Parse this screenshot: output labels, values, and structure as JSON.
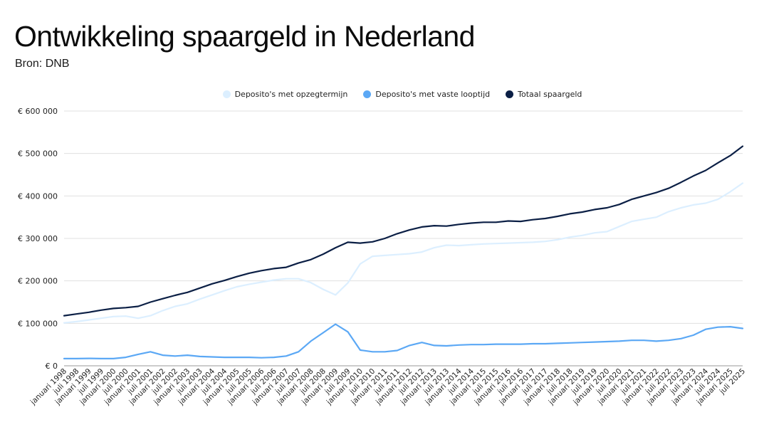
{
  "header": {
    "title": "Ontwikkeling spaargeld in Nederland",
    "source": "Bron: DNB"
  },
  "chart_data": {
    "type": "line",
    "title": "Ontwikkeling spaargeld in Nederland",
    "subtitle": "Bron: DNB",
    "xlabel": "",
    "ylabel": "",
    "ylim": [
      0,
      600000
    ],
    "yticks": [
      0,
      100000,
      200000,
      300000,
      400000,
      500000,
      600000
    ],
    "ytick_labels": [
      "€ 0",
      "€ 100 000",
      "€ 200 000",
      "€ 300 000",
      "€ 400 000",
      "€ 500 000",
      "€ 600 000"
    ],
    "grid": true,
    "legend_position": "top-center",
    "categories": [
      "januari 1998",
      "juli 1998",
      "januari 1999",
      "juli 1999",
      "januari 2000",
      "juli 2000",
      "januari 2001",
      "juli 2001",
      "januari 2002",
      "juli 2002",
      "januari 2003",
      "juli 2003",
      "januari 2004",
      "juli 2004",
      "januari 2005",
      "juli 2005",
      "januari 2006",
      "juli 2006",
      "januari 2007",
      "juli 2007",
      "januari 2008",
      "juli 2008",
      "januari 2009",
      "juli 2009",
      "januari 2010",
      "juli 2010",
      "januari 2011",
      "juli 2011",
      "januari 2012",
      "juli 2012",
      "januari 2013",
      "juli 2013",
      "januari 2014",
      "juli 2014",
      "januari 2015",
      "juli 2015",
      "januari 2016",
      "juli 2016",
      "januari 2017",
      "juli 2017",
      "januari 2018",
      "juli 2018",
      "januari 2019",
      "juli 2019",
      "januari 2020",
      "juli 2020",
      "januari 2021",
      "juli 2021",
      "januari 2022",
      "juli 2022",
      "januari 2023",
      "juli 2023",
      "januari 2024",
      "juli 2024",
      "januari 2025",
      "juli 2025"
    ],
    "series": [
      {
        "name": "Deposito's met opzegtermijn",
        "color": "#dcefff",
        "values": [
          101000,
          104000,
          108000,
          112000,
          116000,
          117000,
          112000,
          118000,
          130000,
          140000,
          146000,
          157000,
          167000,
          177000,
          186000,
          192000,
          197000,
          202000,
          205000,
          205000,
          196000,
          180000,
          167000,
          195000,
          240000,
          258000,
          260000,
          262000,
          264000,
          268000,
          278000,
          284000,
          283000,
          285000,
          287000,
          288000,
          289000,
          290000,
          291000,
          293000,
          297000,
          303000,
          307000,
          313000,
          316000,
          328000,
          340000,
          345000,
          350000,
          363000,
          372000,
          379000,
          383000,
          392000,
          410000,
          430000
        ]
      },
      {
        "name": "Deposito's met vaste looptijd",
        "color": "#5ba8f5",
        "values": [
          17000,
          17000,
          17500,
          17000,
          17000,
          20000,
          27000,
          33000,
          25000,
          23000,
          25000,
          22000,
          21000,
          20000,
          20000,
          20000,
          19000,
          20000,
          23000,
          33000,
          58000,
          78000,
          98000,
          80000,
          37000,
          33000,
          33000,
          36000,
          48000,
          55000,
          48000,
          47000,
          49000,
          50000,
          50000,
          51000,
          51000,
          51000,
          52000,
          52000,
          53000,
          54000,
          55000,
          56000,
          57000,
          58000,
          60000,
          60000,
          58000,
          60000,
          64000,
          72000,
          86000,
          91000,
          92000,
          88000
        ]
      },
      {
        "name": "Totaal spaargeld",
        "color": "#0b1f45",
        "values": [
          118000,
          122000,
          126000,
          131000,
          135000,
          137000,
          140000,
          150000,
          158000,
          166000,
          173000,
          183000,
          193000,
          201000,
          210000,
          218000,
          224000,
          229000,
          232000,
          242000,
          250000,
          263000,
          278000,
          291000,
          289000,
          292000,
          300000,
          311000,
          320000,
          327000,
          330000,
          329000,
          333000,
          336000,
          338000,
          338000,
          341000,
          340000,
          344000,
          347000,
          352000,
          358000,
          362000,
          368000,
          372000,
          380000,
          392000,
          400000,
          408000,
          418000,
          432000,
          447000,
          460000,
          478000,
          495000,
          517000
        ]
      }
    ]
  }
}
